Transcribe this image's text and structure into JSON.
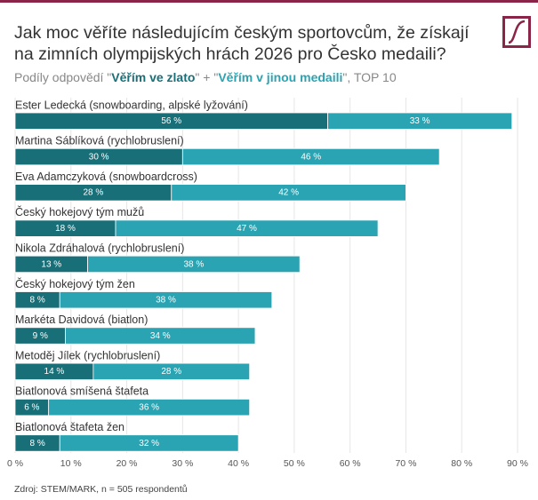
{
  "chart_data": {
    "type": "stacked-bar-horizontal",
    "title": [
      "Jak moc věříte následujícím českým sportovcům, že získají",
      "na zimních olympijských hrách 2026 pro Česko medaili?"
    ],
    "subtitle": {
      "before": "Podíly odpovědí \"",
      "between": "\" + \"",
      "after": "\", TOP 10"
    },
    "source": "Zdroj: STEM/MARK, n = 505 respondentů",
    "categories": [
      "Ester Ledecká (snowboarding, alpské lyžování)",
      "Martina Sáblíková (rychlobruslení)",
      "Eva Adamczyková (snowboardcross)",
      "Český hokejový tým mužů",
      "Nikola Zdráhalová (rychlobruslení)",
      "Český hokejový tým žen",
      "Markéta Davidová (biatlon)",
      "Metoděj Jílek (rychlobruslení)",
      "Biatlonová smíšená štafeta",
      "Biatlonová štafeta žen"
    ],
    "series": [
      {
        "name": "Věřím ve zlato",
        "color": "#196f78",
        "values": [
          56,
          30,
          28,
          18,
          13,
          8,
          9,
          14,
          6,
          8
        ],
        "value_labels": [
          "56 %",
          "30 %",
          "28 %",
          "18 %",
          "13 %",
          "8 %",
          "9 %",
          "14 %",
          "6 %",
          "8 %"
        ]
      },
      {
        "name": "Věřím v jinou medaili",
        "color": "#2aa3b2",
        "values": [
          33,
          46,
          42,
          47,
          38,
          38,
          34,
          28,
          36,
          32
        ],
        "value_labels": [
          "33 %",
          "46 %",
          "42 %",
          "47 %",
          "38 %",
          "38 %",
          "34 %",
          "28 %",
          "36 %",
          "32 %"
        ]
      }
    ],
    "xlim": [
      0,
      90
    ],
    "xticks": [
      {
        "value": 0,
        "label": "0 %"
      },
      {
        "value": 10,
        "label": "10 %"
      },
      {
        "value": 20,
        "label": "20 %"
      },
      {
        "value": 30,
        "label": "30 %"
      },
      {
        "value": 40,
        "label": "40 %"
      },
      {
        "value": 50,
        "label": "50 %"
      },
      {
        "value": 60,
        "label": "60 %"
      },
      {
        "value": 70,
        "label": "70 %"
      },
      {
        "value": 80,
        "label": "80 %"
      },
      {
        "value": 90,
        "label": "90 %"
      }
    ],
    "grid": true
  }
}
